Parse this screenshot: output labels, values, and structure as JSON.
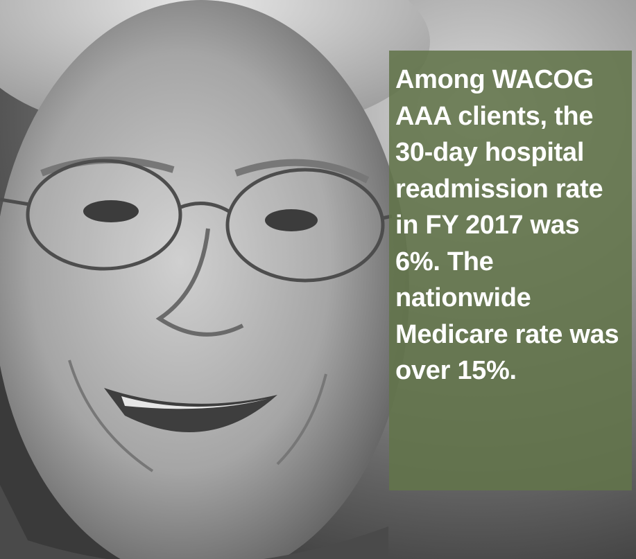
{
  "caption": "Among WACOG AAA clients, the 30-day hospital readmission rate in FY 2017 was 6%. The nationwide Medicare rate was over 15%."
}
